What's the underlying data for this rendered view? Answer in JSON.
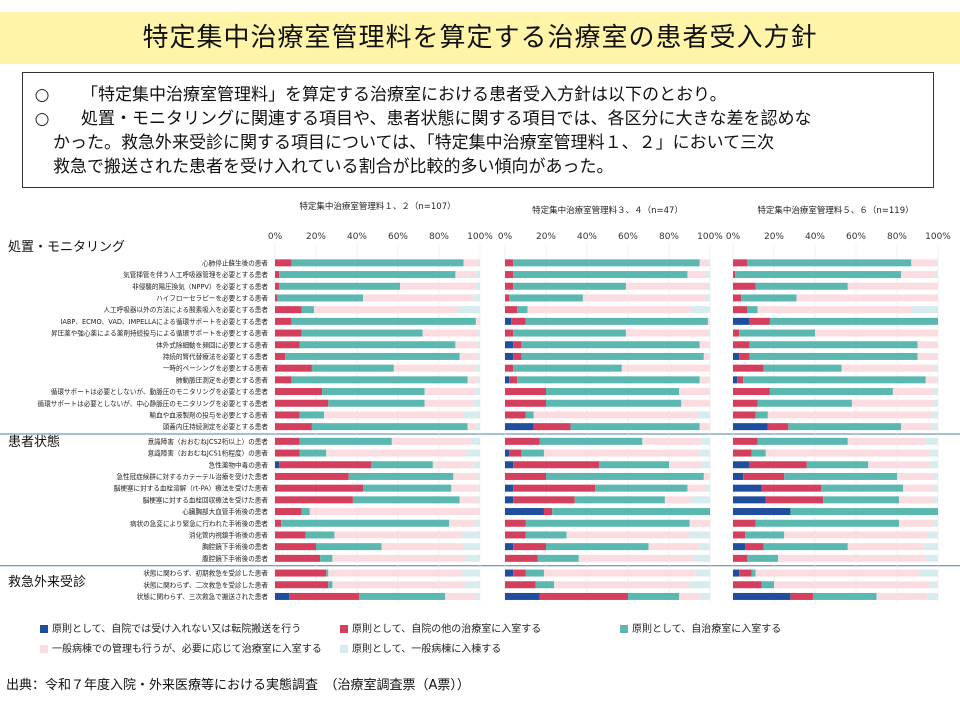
{
  "page_title": "特定集中治療室管理料を算定する治療室の患者受入方針",
  "summary": {
    "bullet": "○",
    "lines": [
      "「特定集中治療室管理料」を算定する治療室における患者受入方針は以下のとおり。",
      "処置・モニタリングに関連する項目や、患者状態に関する項目では、各区分に大きな差を認めな",
      "かった。救急外来受診に関する項目については、「特定集中治療室管理料１、２」において三次",
      "救急で搬送された患者を受け入れている割合が比較的多い傾向があった。"
    ]
  },
  "source_note": "出典：令和７年度入院・外来医療等における実態調査　（治療室調査票（A票））",
  "colors": {
    "cat1": "#1f4e9e",
    "cat2": "#d43f5e",
    "cat3": "#5bb8b0",
    "cat4": "#fbdde1",
    "cat5": "#d6ecee"
  },
  "legend": [
    {
      "label": "原則として、自院では受け入れない又は転院搬送を行う",
      "color": "#1f4e9e"
    },
    {
      "label": "原則として、自院の他の治療室に入室する",
      "color": "#d43f5e"
    },
    {
      "label": "原則として、自治療室に入室する",
      "color": "#5bb8b0"
    },
    {
      "label": "一般病棟での管理も行うが、必要に応じて治療室に入室する",
      "color": "#fbdde1"
    },
    {
      "label": "原則として、一般病棟に入棟する",
      "color": "#d6ecee"
    }
  ],
  "chart_data": {
    "type": "bar",
    "orientation": "horizontal-stacked-100",
    "xlim": [
      0,
      100
    ],
    "x_ticks": [
      "0%",
      "20%",
      "40%",
      "60%",
      "80%",
      "100%"
    ],
    "groups": [
      {
        "label": "処置・モニタリング",
        "row_start": 0,
        "row_count": 15
      },
      {
        "label": "患者状態",
        "row_start": 15,
        "row_count": 11
      },
      {
        "label": "救急外来受診",
        "row_start": 26,
        "row_count": 3
      }
    ],
    "categories": [
      "心肺停止蘇生後の患者",
      "気管挿管を伴う人工呼吸器管理を必要とする患者",
      "非侵襲的陽圧換気（NPPV）を必要とする患者",
      "ハイフローセラピーを必要とする患者",
      "人工呼吸器以外の方法による酸素吸入を必要とする患者",
      "IABP、ECMO、VAD、IMPELLAによる循環サポートを必要とする患者",
      "昇圧薬や強心薬による薬剤持続投与による循環サポートを必要とする患者",
      "体外式除細動を頻回に必要とする患者",
      "持続的腎代替療法を必要とする患者",
      "一時的ペーシングを必要とする患者",
      "肺動脈圧測定を必要とする患者",
      "循環サポートは必要としないが、動脈圧のモニタリングを必要とする患者",
      "循環サポートは必要としないが、中心静脈圧のモニタリングを必要とする患者",
      "輸血や血液製剤の投与を必要とする患者",
      "頭蓋内圧持続測定を必要とする患者",
      "意識障害（おおむねJCS2桁以上）の患者",
      "意識障害（おおむねJCS1桁程度）の患者",
      "急性薬物中毒の患者",
      "急性冠症候群に対するカテーテル治療を受けた患者",
      "脳梗塞に対する血栓溶解（rt-PA）療法を受けた患者",
      "脳梗塞に対する血栓回収療法を受けた患者",
      "心臓胸部大血管手術後の患者",
      "病状の急変により緊急に行われた手術後の患者",
      "消化管内視鏡手術後の患者",
      "胸腔鏡下手術後の患者",
      "腹腔鏡下手術後の患者",
      "状態に関わらず、初期救急を受診した患者",
      "状態に関わらず、二次救急を受診した患者",
      "状態に関わらず、三次救急で搬送された患者"
    ],
    "panels": [
      {
        "title": "特定集中治療室管理料１、２（n=107）",
        "series_values": [
          [
            0,
            8,
            84,
            7,
            1
          ],
          [
            0,
            2,
            86,
            10,
            2
          ],
          [
            0,
            2,
            59,
            37,
            2
          ],
          [
            0,
            1,
            42,
            54,
            3
          ],
          [
            0,
            13,
            6,
            70,
            11
          ],
          [
            0,
            8,
            90,
            2,
            0
          ],
          [
            0,
            13,
            59,
            27,
            1
          ],
          [
            0,
            12,
            76,
            11,
            1
          ],
          [
            0,
            5,
            85,
            9,
            1
          ],
          [
            0,
            18,
            40,
            40,
            2
          ],
          [
            0,
            8,
            86,
            5,
            1
          ],
          [
            0,
            23,
            50,
            25,
            2
          ],
          [
            0,
            26,
            47,
            24,
            3
          ],
          [
            0,
            12,
            12,
            68,
            8
          ],
          [
            0,
            18,
            76,
            4,
            2
          ],
          [
            0,
            12,
            45,
            39,
            4
          ],
          [
            0,
            12,
            13,
            68,
            7
          ],
          [
            2,
            45,
            30,
            20,
            3
          ],
          [
            0,
            36,
            51,
            12,
            1
          ],
          [
            0,
            43,
            43,
            13,
            1
          ],
          [
            0,
            38,
            52,
            9,
            1
          ],
          [
            0,
            13,
            4,
            83,
            0
          ],
          [
            0,
            3,
            82,
            13,
            2
          ],
          [
            0,
            15,
            14,
            62,
            9
          ],
          [
            0,
            20,
            32,
            40,
            8
          ],
          [
            0,
            22,
            6,
            65,
            7
          ],
          [
            0,
            25,
            1,
            65,
            9
          ],
          [
            0,
            26,
            2,
            65,
            7
          ],
          [
            7,
            34,
            42,
            15,
            2
          ]
        ]
      },
      {
        "title": "特定集中治療室管理料３、４（n=47）",
        "series_values": [
          [
            0,
            4,
            91,
            4,
            1
          ],
          [
            0,
            4,
            85,
            9,
            2
          ],
          [
            0,
            4,
            55,
            40,
            1
          ],
          [
            0,
            2,
            36,
            60,
            2
          ],
          [
            0,
            6,
            5,
            80,
            9
          ],
          [
            3,
            7,
            89,
            1,
            0
          ],
          [
            0,
            4,
            55,
            40,
            1
          ],
          [
            4,
            4,
            87,
            5,
            0
          ],
          [
            4,
            4,
            89,
            3,
            0
          ],
          [
            0,
            4,
            53,
            43,
            0
          ],
          [
            2,
            4,
            89,
            5,
            0
          ],
          [
            0,
            20,
            65,
            15,
            0
          ],
          [
            0,
            20,
            66,
            14,
            0
          ],
          [
            0,
            10,
            4,
            80,
            6
          ],
          [
            14,
            18,
            63,
            5,
            0
          ],
          [
            0,
            17,
            50,
            29,
            4
          ],
          [
            2,
            6,
            11,
            76,
            5
          ],
          [
            4,
            42,
            34,
            16,
            4
          ],
          [
            0,
            20,
            77,
            3,
            0
          ],
          [
            4,
            40,
            45,
            9,
            2
          ],
          [
            4,
            30,
            44,
            13,
            9
          ],
          [
            19,
            4,
            77,
            0,
            0
          ],
          [
            0,
            10,
            80,
            10,
            0
          ],
          [
            0,
            10,
            20,
            60,
            10
          ],
          [
            4,
            16,
            50,
            25,
            5
          ],
          [
            0,
            16,
            20,
            56,
            8
          ],
          [
            4,
            6,
            9,
            74,
            7
          ],
          [
            0,
            15,
            9,
            66,
            10
          ],
          [
            17,
            43,
            25,
            10,
            5
          ]
        ]
      },
      {
        "title": "特定集中治療室管理料５、６（n=119）",
        "series_values": [
          [
            0,
            7,
            80,
            12,
            1
          ],
          [
            0,
            1,
            81,
            17,
            1
          ],
          [
            0,
            11,
            45,
            44,
            0
          ],
          [
            0,
            4,
            27,
            69,
            0
          ],
          [
            0,
            7,
            5,
            75,
            13
          ],
          [
            8,
            10,
            82,
            0,
            0
          ],
          [
            0,
            3,
            37,
            60,
            0
          ],
          [
            0,
            8,
            82,
            10,
            0
          ],
          [
            3,
            5,
            82,
            10,
            0
          ],
          [
            0,
            15,
            38,
            45,
            2
          ],
          [
            2,
            3,
            89,
            5,
            1
          ],
          [
            0,
            18,
            60,
            20,
            2
          ],
          [
            0,
            12,
            46,
            40,
            2
          ],
          [
            0,
            11,
            6,
            80,
            3
          ],
          [
            17,
            10,
            55,
            15,
            3
          ],
          [
            0,
            12,
            44,
            38,
            6
          ],
          [
            0,
            9,
            7,
            80,
            4
          ],
          [
            8,
            28,
            30,
            30,
            4
          ],
          [
            5,
            20,
            55,
            18,
            2
          ],
          [
            14,
            29,
            40,
            15,
            2
          ],
          [
            16,
            28,
            37,
            17,
            2
          ],
          [
            28,
            0,
            72,
            0,
            0
          ],
          [
            0,
            11,
            70,
            17,
            2
          ],
          [
            0,
            6,
            19,
            70,
            5
          ],
          [
            6,
            9,
            41,
            37,
            7
          ],
          [
            0,
            7,
            15,
            72,
            6
          ],
          [
            3,
            6,
            2,
            80,
            9
          ],
          [
            0,
            14,
            6,
            76,
            4
          ],
          [
            28,
            11,
            31,
            25,
            5
          ]
        ]
      }
    ]
  }
}
